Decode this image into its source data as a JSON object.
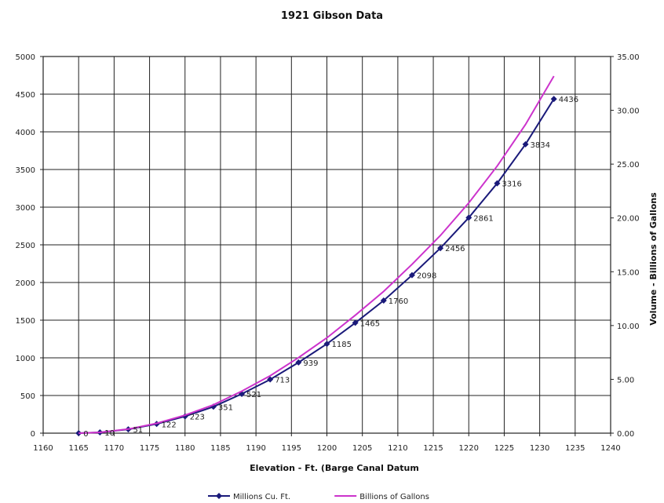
{
  "chart_data": {
    "type": "line",
    "title": "1921 Gibson Data",
    "xlabel": "Elevation - Ft. (Barge Canal Datum",
    "ylabel": "",
    "y2label": "Volume - Billions of Gallons",
    "xlim": [
      1160,
      1240
    ],
    "ylim": [
      0,
      5000
    ],
    "y2lim": [
      0,
      35
    ],
    "x_ticks": [
      "1160",
      "1165",
      "1170",
      "1175",
      "1180",
      "1185",
      "1190",
      "1195",
      "1200",
      "1205",
      "1210",
      "1215",
      "1220",
      "1225",
      "1230",
      "1235",
      "1240"
    ],
    "y_ticks": [
      "0",
      "500",
      "1000",
      "1500",
      "2000",
      "2500",
      "3000",
      "3500",
      "4000",
      "4500",
      "5000"
    ],
    "y2_ticks": [
      "0.00",
      "5.00",
      "10.00",
      "15.00",
      "20.00",
      "25.00",
      "30.00",
      "35.00"
    ],
    "grid": true,
    "legend_position": "bottom",
    "series": [
      {
        "name": "Millions Cu. Ft.",
        "color": "#1a1a7a",
        "axis": "left",
        "marker": "diamond",
        "x": [
          1165,
          1168,
          1172,
          1176,
          1180,
          1184,
          1188,
          1192,
          1196,
          1200,
          1204,
          1208,
          1212,
          1216,
          1220,
          1224,
          1228,
          1232
        ],
        "y": [
          0,
          10,
          51,
          122,
          223,
          351,
          521,
          713,
          939,
          1185,
          1465,
          1760,
          2098,
          2456,
          2861,
          3316,
          3834,
          4436
        ],
        "labels": [
          "0",
          "10",
          "51",
          "122",
          "223",
          "351",
          "521",
          "713",
          "939",
          "1185",
          "1465",
          "1760",
          "2098",
          "2456",
          "2861",
          "3316",
          "3834",
          "4436"
        ]
      },
      {
        "name": "Billions of Gallons",
        "color": "#cc33cc",
        "axis": "right",
        "marker": "none",
        "x": [
          1165,
          1168,
          1172,
          1176,
          1180,
          1184,
          1188,
          1192,
          1196,
          1200,
          1204,
          1208,
          1212,
          1216,
          1220,
          1224,
          1228,
          1232
        ],
        "y": [
          0,
          0.07,
          0.38,
          0.91,
          1.67,
          2.63,
          3.9,
          5.33,
          7.02,
          8.86,
          10.96,
          13.17,
          15.69,
          18.37,
          21.4,
          24.81,
          28.68,
          33.18
        ]
      }
    ]
  }
}
